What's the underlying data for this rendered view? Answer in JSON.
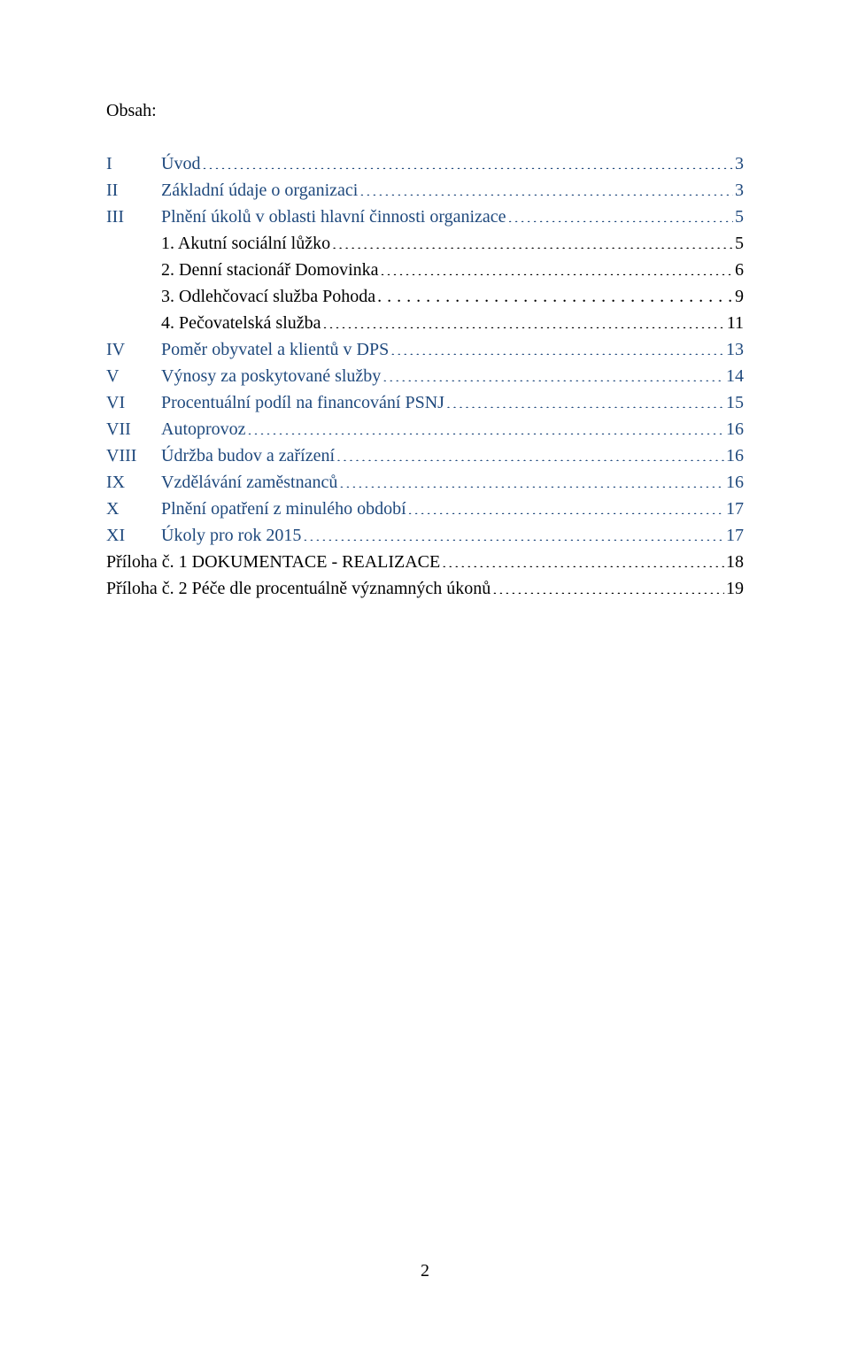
{
  "title": "Obsah:",
  "page_number": "2",
  "colors": {
    "link": "#1F497D",
    "text": "#000000",
    "background": "#ffffff"
  },
  "toc": [
    {
      "num": "I",
      "label": "Úvod",
      "page": "3",
      "blue": true
    },
    {
      "num": "II",
      "label": "Základní údaje o organizaci",
      "page": "3",
      "blue": true
    },
    {
      "num": "III",
      "label": "Plnění úkolů v oblasti hlavní činnosti organizace",
      "page": "5",
      "blue": true
    },
    {
      "num": "",
      "label": "1. Akutní sociální lůžko",
      "page": "5",
      "blue": false
    },
    {
      "num": "",
      "label": "2. Denní stacionář Domovinka",
      "page": "6",
      "blue": false
    },
    {
      "num": "",
      "label": "3. Odlehčovací služba Pohoda",
      "page": "9",
      "blue": false,
      "style": "commas"
    },
    {
      "num": "",
      "label": "4. Pečovatelská služba",
      "page": "11",
      "blue": false,
      "pageSpace": true
    },
    {
      "num": "IV",
      "label": "Poměr obyvatel a klientů v DPS",
      "page": "13",
      "blue": true
    },
    {
      "num": "V",
      "label": "Výnosy za poskytované služby",
      "page": "14",
      "blue": true
    },
    {
      "num": "VI",
      "label": "Procentuální podíl na financování PSNJ",
      "page": "15",
      "blue": true
    },
    {
      "num": "VII",
      "label": "Autoprovoz",
      "page": "16",
      "blue": true
    },
    {
      "num": "VIII",
      "label": "Údržba budov a zařízení",
      "page": "16",
      "blue": true
    },
    {
      "num": "IX",
      "label": "Vzdělávání zaměstnanců",
      "page": "16",
      "blue": true
    },
    {
      "num": "X",
      "label": "Plnění opatření z minulého období",
      "page": "17",
      "blue": true
    },
    {
      "num": "XI",
      "label": "Úkoly pro rok 2015",
      "page": "17",
      "blue": true
    },
    {
      "num": "",
      "label": "Příloha č. 1 DOKUMENTACE - REALIZACE",
      "page": "18",
      "blue": false,
      "pageSpace": true,
      "noNum": true
    },
    {
      "num": "",
      "label": "Příloha č. 2 Péče dle procentuálně významných úkonů",
      "page": "19",
      "blue": false,
      "pageSpace": true,
      "noNum": true
    }
  ]
}
